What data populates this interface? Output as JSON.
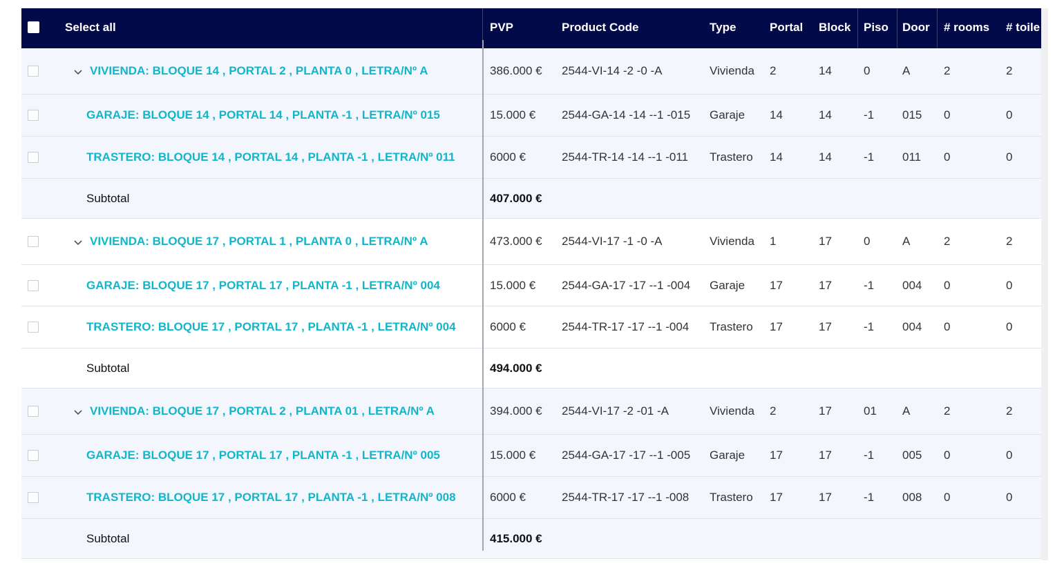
{
  "header": {
    "select_all": "Select all",
    "columns": [
      "PVP",
      "Product Code",
      "Type",
      "Portal",
      "Block",
      "Piso",
      "Door",
      "# rooms",
      "# toile"
    ]
  },
  "groups": [
    {
      "rows": [
        {
          "name": "VIVIENDA: BLOQUE 14 , PORTAL 2 , PLANTA 0 , LETRA/Nº A",
          "pvp": "386.000 €",
          "code": "2544-VI-14 -2 -0 -A",
          "type": "Vivienda",
          "portal": "2",
          "block": "14",
          "piso": "0",
          "door": "A",
          "rooms": "2",
          "toilets": "2"
        },
        {
          "name": "GARAJE: BLOQUE 14 , PORTAL 14 , PLANTA -1 , LETRA/Nº 015",
          "pvp": "15.000 €",
          "code": "2544-GA-14 -14 --1 -015",
          "type": "Garaje",
          "portal": "14",
          "block": "14",
          "piso": "-1",
          "door": "015",
          "rooms": "0",
          "toilets": "0"
        },
        {
          "name": "TRASTERO: BLOQUE 14 , PORTAL 14 , PLANTA -1 , LETRA/Nº 011",
          "pvp": "6000 €",
          "code": "2544-TR-14 -14 --1 -011",
          "type": "Trastero",
          "portal": "14",
          "block": "14",
          "piso": "-1",
          "door": "011",
          "rooms": "0",
          "toilets": "0"
        }
      ],
      "subtotal_label": "Subtotal",
      "subtotal": "407.000 €"
    },
    {
      "rows": [
        {
          "name": "VIVIENDA: BLOQUE 17 , PORTAL 1 , PLANTA 0 , LETRA/Nº A",
          "pvp": "473.000 €",
          "code": "2544-VI-17 -1 -0 -A",
          "type": "Vivienda",
          "portal": "1",
          "block": "17",
          "piso": "0",
          "door": "A",
          "rooms": "2",
          "toilets": "2"
        },
        {
          "name": "GARAJE: BLOQUE 17 , PORTAL 17 , PLANTA -1 , LETRA/Nº 004",
          "pvp": "15.000 €",
          "code": "2544-GA-17 -17 --1 -004",
          "type": "Garaje",
          "portal": "17",
          "block": "17",
          "piso": "-1",
          "door": "004",
          "rooms": "0",
          "toilets": "0"
        },
        {
          "name": "TRASTERO: BLOQUE 17 , PORTAL 17 , PLANTA -1 , LETRA/Nº 004",
          "pvp": "6000 €",
          "code": "2544-TR-17 -17 --1 -004",
          "type": "Trastero",
          "portal": "17",
          "block": "17",
          "piso": "-1",
          "door": "004",
          "rooms": "0",
          "toilets": "0"
        }
      ],
      "subtotal_label": "Subtotal",
      "subtotal": "494.000 €"
    },
    {
      "rows": [
        {
          "name": "VIVIENDA: BLOQUE 17 , PORTAL 2 , PLANTA 01 , LETRA/Nº A",
          "pvp": "394.000 €",
          "code": "2544-VI-17 -2 -01 -A",
          "type": "Vivienda",
          "portal": "2",
          "block": "17",
          "piso": "01",
          "door": "A",
          "rooms": "2",
          "toilets": "2"
        },
        {
          "name": "GARAJE: BLOQUE 17 , PORTAL 17 , PLANTA -1 , LETRA/Nº 005",
          "pvp": "15.000 €",
          "code": "2544-GA-17 -17 --1 -005",
          "type": "Garaje",
          "portal": "17",
          "block": "17",
          "piso": "-1",
          "door": "005",
          "rooms": "0",
          "toilets": "0"
        },
        {
          "name": "TRASTERO: BLOQUE 17 , PORTAL 17 , PLANTA -1 , LETRA/Nº 008",
          "pvp": "6000 €",
          "code": "2544-TR-17 -17 --1 -008",
          "type": "Trastero",
          "portal": "17",
          "block": "17",
          "piso": "-1",
          "door": "008",
          "rooms": "0",
          "toilets": "0"
        }
      ],
      "subtotal_label": "Subtotal",
      "subtotal": "415.000 €"
    }
  ],
  "colors": {
    "header_bg": "#020a4a",
    "link": "#12b5c9",
    "row_tint": "#f3f6fd"
  }
}
